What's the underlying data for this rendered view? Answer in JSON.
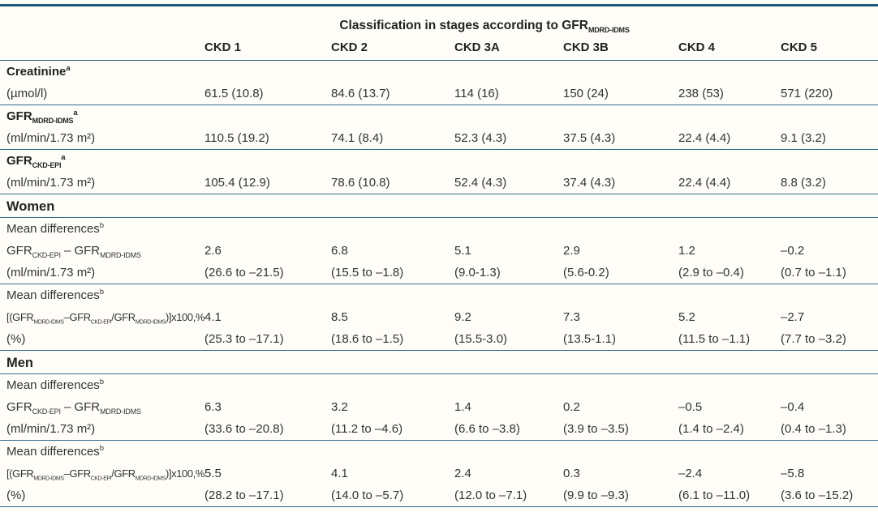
{
  "table": {
    "colors": {
      "rule": "#1d5b7d",
      "rule_thin": "#2e6c8d",
      "text": "#333333",
      "background": "#fffdf7"
    },
    "title": {
      "parts": [
        {
          "t": "Classification in stages according to GFR",
          "s": "n"
        },
        {
          "t": "MDRD-IDMS",
          "s": "sub"
        }
      ]
    },
    "columns": [
      "CKD 1",
      "CKD 2",
      "CKD 3A",
      "CKD 3B",
      "CKD 4",
      "CKD 5"
    ],
    "rows": [
      {
        "name": "creatinine-label-row",
        "kind": "label",
        "label_parts": [
          {
            "t": "Creatinine",
            "s": "n"
          },
          {
            "t": "a",
            "s": "sup"
          }
        ],
        "values": [
          "",
          "",
          "",
          "",
          "",
          ""
        ],
        "separator": false
      },
      {
        "name": "creatinine-values-row",
        "kind": "data",
        "label_parts": [
          {
            "t": "(µmol/l)",
            "s": "n"
          }
        ],
        "values": [
          "61.5 (10.8)",
          "84.6 (13.7)",
          "114 (16)",
          "150 (24)",
          "238 (53)",
          "571 (220)"
        ],
        "separator": true
      },
      {
        "name": "gfr-mdrd-idms-label-row",
        "kind": "label",
        "label_parts": [
          {
            "t": "GFR",
            "s": "n"
          },
          {
            "t": "MDRD-IDMS",
            "s": "sub"
          },
          {
            "t": "a",
            "s": "sup"
          }
        ],
        "values": [
          "",
          "",
          "",
          "",
          "",
          ""
        ],
        "separator": false
      },
      {
        "name": "gfr-mdrd-idms-values-row",
        "kind": "data",
        "label_parts": [
          {
            "t": "(ml/min/1.73 m²)",
            "s": "n"
          }
        ],
        "values": [
          "110.5 (19.2)",
          "74.1 (8.4)",
          "52.3 (4.3)",
          "37.5 (4.3)",
          "22.4 (4.4)",
          "9.1 (3.2)"
        ],
        "separator": true
      },
      {
        "name": "gfr-ckd-epi-label-row",
        "kind": "label",
        "label_parts": [
          {
            "t": "GFR",
            "s": "n"
          },
          {
            "t": "CKD-EPI",
            "s": "sub"
          },
          {
            "t": "a",
            "s": "sup"
          }
        ],
        "values": [
          "",
          "",
          "",
          "",
          "",
          ""
        ],
        "separator": false
      },
      {
        "name": "gfr-ckd-epi-values-row",
        "kind": "data",
        "label_parts": [
          {
            "t": "(ml/min/1.73 m²)",
            "s": "n"
          }
        ],
        "values": [
          "105.4 (12.9)",
          "78.6 (10.8)",
          "52.4 (4.3)",
          "37.4 (4.3)",
          "22.4 (4.4)",
          "8.8 (3.2)"
        ],
        "separator": true
      },
      {
        "name": "women-section-row",
        "kind": "section",
        "label_parts": [
          {
            "t": "Women",
            "s": "n"
          }
        ],
        "values": [
          "",
          "",
          "",
          "",
          "",
          ""
        ],
        "separator": true
      },
      {
        "name": "women-mean-differences-1-subhead",
        "kind": "subhead",
        "label_parts": [
          {
            "t": "Mean differences",
            "s": "n"
          },
          {
            "t": "b",
            "s": "sup"
          }
        ],
        "values": [
          "",
          "",
          "",
          "",
          "",
          ""
        ],
        "separator": false
      },
      {
        "name": "women-gfr-difference-values-row",
        "kind": "data",
        "label_parts": [
          {
            "t": "GFR",
            "s": "n"
          },
          {
            "t": "CKD-EPI",
            "s": "sub"
          },
          {
            "t": " – GFR",
            "s": "n"
          },
          {
            "t": "MDRD-IDMS",
            "s": "sub"
          }
        ],
        "values": [
          "2.6",
          "6.8",
          "5.1",
          "2.9",
          "1.2",
          "–0.2"
        ],
        "separator": false
      },
      {
        "name": "women-gfr-difference-ci-row",
        "kind": "data",
        "label_parts": [
          {
            "t": "(ml/min/1.73 m²)",
            "s": "n"
          }
        ],
        "values": [
          "(26.6 to –21.5)",
          "(15.5 to –1.8)",
          "(9.0-1.3)",
          "(5.6-0.2)",
          "(2.9 to –0.4)",
          "(0.7 to –1.1)"
        ],
        "separator": true
      },
      {
        "name": "women-mean-differences-2-subhead",
        "kind": "subhead",
        "label_parts": [
          {
            "t": "Mean differences",
            "s": "n"
          },
          {
            "t": "b",
            "s": "sup"
          }
        ],
        "values": [
          "",
          "",
          "",
          "",
          "",
          ""
        ],
        "separator": false
      },
      {
        "name": "women-percent-difference-values-row",
        "kind": "data",
        "formula": true,
        "label_parts": [
          {
            "t": "[(GFR",
            "s": "n"
          },
          {
            "t": "MDRD-IDMS",
            "s": "sub"
          },
          {
            "t": "–GFR",
            "s": "n"
          },
          {
            "t": "CKD-EPI",
            "s": "sub"
          },
          {
            "t": "/GFR",
            "s": "n"
          },
          {
            "t": "MDRD-IDMS",
            "s": "sub"
          },
          {
            "t": ")]x100,%",
            "s": "n"
          }
        ],
        "values": [
          "4.1",
          "8.5",
          "9.2",
          "7.3",
          "5.2",
          "–2.7"
        ],
        "separator": false
      },
      {
        "name": "women-percent-difference-ci-row",
        "kind": "data",
        "label_parts": [
          {
            "t": "(%)",
            "s": "n"
          }
        ],
        "values": [
          "(25.3 to –17.1)",
          "(18.6 to –1.5)",
          "(15.5-3.0)",
          "(13.5-1.1)",
          "(11.5 to –1.1)",
          "(7.7 to –3.2)"
        ],
        "separator": true
      },
      {
        "name": "men-section-row",
        "kind": "section",
        "label_parts": [
          {
            "t": "Men",
            "s": "n"
          }
        ],
        "values": [
          "",
          "",
          "",
          "",
          "",
          ""
        ],
        "separator": true
      },
      {
        "name": "men-mean-differences-1-subhead",
        "kind": "subhead",
        "label_parts": [
          {
            "t": "Mean differences",
            "s": "n"
          },
          {
            "t": "b",
            "s": "sup"
          }
        ],
        "values": [
          "",
          "",
          "",
          "",
          "",
          ""
        ],
        "separator": false
      },
      {
        "name": "men-gfr-difference-values-row",
        "kind": "data",
        "label_parts": [
          {
            "t": "GFR",
            "s": "n"
          },
          {
            "t": "CKD-EPI",
            "s": "sub"
          },
          {
            "t": " – GFR",
            "s": "n"
          },
          {
            "t": "MDRD-IDMS",
            "s": "sub"
          }
        ],
        "values": [
          "6.3",
          "3.2",
          "1.4",
          "0.2",
          "–0.5",
          "–0.4"
        ],
        "separator": false
      },
      {
        "name": "men-gfr-difference-ci-row",
        "kind": "data",
        "label_parts": [
          {
            "t": "(ml/min/1.73 m²)",
            "s": "n"
          }
        ],
        "values": [
          "(33.6 to –20.8)",
          "(11.2 to –4.6)",
          "(6.6 to –3.8)",
          "(3.9 to –3.5)",
          "(1.4 to –2.4)",
          "(0.4 to –1.3)"
        ],
        "separator": true
      },
      {
        "name": "men-mean-differences-2-subhead",
        "kind": "subhead",
        "label_parts": [
          {
            "t": "Mean differences",
            "s": "n"
          },
          {
            "t": "b",
            "s": "sup"
          }
        ],
        "values": [
          "",
          "",
          "",
          "",
          "",
          ""
        ],
        "separator": false
      },
      {
        "name": "men-percent-difference-values-row",
        "kind": "data",
        "formula": true,
        "label_parts": [
          {
            "t": "[(GFR",
            "s": "n"
          },
          {
            "t": "MDRD-IDMS",
            "s": "sub"
          },
          {
            "t": "–GFR",
            "s": "n"
          },
          {
            "t": "CKD-EPI",
            "s": "sub"
          },
          {
            "t": "/GFR",
            "s": "n"
          },
          {
            "t": "MDRD-IDMS",
            "s": "sub"
          },
          {
            "t": ")]x100,%",
            "s": "n"
          }
        ],
        "values": [
          "5.5",
          "4.1",
          "2.4",
          "0.3",
          "–2.4",
          "–5.8"
        ],
        "separator": false
      },
      {
        "name": "men-percent-difference-ci-row",
        "kind": "data",
        "label_parts": [
          {
            "t": "(%)",
            "s": "n"
          }
        ],
        "values": [
          "(28.2 to –17.1)",
          "(14.0 to –5.7)",
          "(12.0 to –7.1)",
          "(9.9 to –9.3)",
          "(6.1 to –11.0)",
          "(3.6 to –15.2)"
        ],
        "separator": true
      }
    ]
  }
}
